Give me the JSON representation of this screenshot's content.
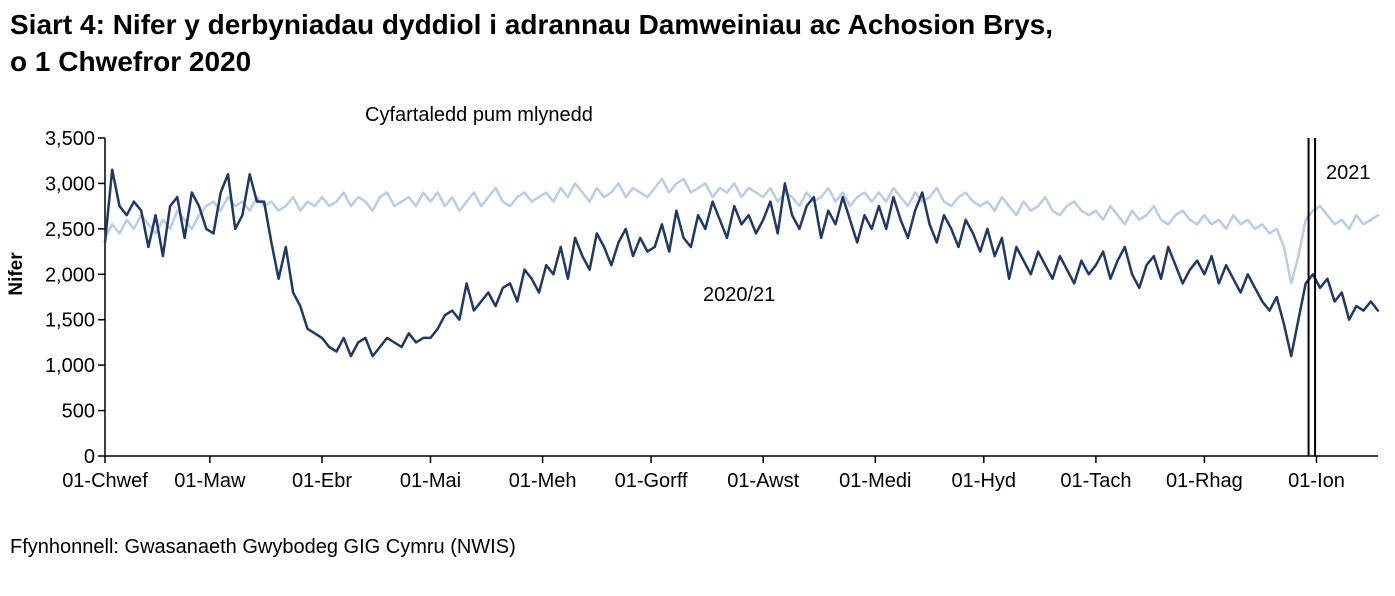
{
  "page": {
    "title_line1": "Siart 4: Nifer y derbyniadau dyddiol i adrannau Damweiniau ac Achosion Brys,",
    "title_line2": "o 1 Chwefror 2020",
    "source": "Ffynhonnell: Gwasanaeth Gwybodeg GIG Cymru (NWIS)"
  },
  "chart_data": {
    "type": "line",
    "title": "Siart 4: Nifer y derbyniadau dyddiol i adrannau Damweiniau ac Achosion Brys, o 1 Chwefror 2020",
    "ylabel": "Nifer",
    "xlabel": "",
    "ylim": [
      0,
      3500
    ],
    "grid": false,
    "legend_position": "inline-annotations",
    "yticks": {
      "values": [
        0,
        500,
        1000,
        1500,
        2000,
        2500,
        3000,
        3500
      ],
      "labels": [
        "0",
        "500",
        "1,000",
        "1,500",
        "2,000",
        "2,500",
        "3,000",
        "3,500"
      ]
    },
    "xticks": [
      {
        "day": 0,
        "label": "01-Chwef"
      },
      {
        "day": 29,
        "label": "01-Maw"
      },
      {
        "day": 60,
        "label": "01-Ebr"
      },
      {
        "day": 90,
        "label": "01-Mai"
      },
      {
        "day": 121,
        "label": "01-Meh"
      },
      {
        "day": 151,
        "label": "01-Gorff"
      },
      {
        "day": 182,
        "label": "01-Awst"
      },
      {
        "day": 213,
        "label": "01-Medi"
      },
      {
        "day": 243,
        "label": "01-Hyd"
      },
      {
        "day": 274,
        "label": "01-Tach"
      },
      {
        "day": 304,
        "label": "01-Rhag"
      },
      {
        "day": 335,
        "label": "01-Ion"
      }
    ],
    "x_max_day": 352,
    "vline_days": [
      332.8,
      334.6
    ],
    "labels": {
      "five_year": "Cyfartaledd pum mlynedd",
      "current": "2020/21",
      "year_marker": "2021"
    },
    "series": [
      {
        "name": "Cyfartaledd pum mlynedd",
        "color": "#B9CDE5",
        "stroke_width": 2.5,
        "x_start_day": 0,
        "x_interval_days": 2,
        "values": [
          2400,
          2550,
          2450,
          2600,
          2500,
          2650,
          2550,
          2450,
          2600,
          2500,
          2700,
          2600,
          2500,
          2650,
          2750,
          2800,
          2700,
          2850,
          2750,
          2800,
          2700,
          2850,
          2750,
          2800,
          2700,
          2750,
          2850,
          2700,
          2800,
          2750,
          2850,
          2750,
          2800,
          2900,
          2750,
          2850,
          2800,
          2700,
          2850,
          2900,
          2750,
          2800,
          2850,
          2750,
          2900,
          2800,
          2900,
          2750,
          2850,
          2700,
          2800,
          2900,
          2750,
          2850,
          2950,
          2800,
          2750,
          2850,
          2900,
          2800,
          2850,
          2900,
          2800,
          2950,
          2850,
          3000,
          2900,
          2800,
          2950,
          2850,
          2900,
          3000,
          2850,
          2950,
          2900,
          2850,
          2950,
          3050,
          2900,
          3000,
          3050,
          2900,
          2950,
          3000,
          2850,
          2950,
          2900,
          3000,
          2850,
          2950,
          2900,
          2850,
          2950,
          2800,
          2900,
          2850,
          2750,
          2900,
          2800,
          2850,
          2950,
          2800,
          2900,
          2750,
          2850,
          2900,
          2800,
          2900,
          2800,
          2950,
          2850,
          2750,
          2900,
          2800,
          2850,
          2950,
          2800,
          2750,
          2850,
          2900,
          2800,
          2750,
          2800,
          2700,
          2850,
          2750,
          2650,
          2800,
          2700,
          2750,
          2850,
          2700,
          2650,
          2750,
          2800,
          2700,
          2650,
          2700,
          2600,
          2750,
          2650,
          2550,
          2700,
          2600,
          2650,
          2750,
          2600,
          2550,
          2650,
          2700,
          2600,
          2550,
          2650,
          2550,
          2600,
          2500,
          2650,
          2550,
          2600,
          2500,
          2550,
          2450,
          2500,
          2300,
          1900,
          2200,
          2600,
          2700,
          2750,
          2650,
          2550,
          2600,
          2500,
          2650,
          2550,
          2600,
          2650
        ]
      },
      {
        "name": "2020/21",
        "color": "#1F3864",
        "stroke_width": 2.5,
        "x_start_day": 0,
        "x_interval_days": 2,
        "values": [
          2350,
          3150,
          2750,
          2650,
          2800,
          2700,
          2300,
          2650,
          2200,
          2750,
          2850,
          2400,
          2900,
          2750,
          2500,
          2450,
          2900,
          3100,
          2500,
          2650,
          3100,
          2800,
          2800,
          2350,
          1950,
          2300,
          1800,
          1650,
          1400,
          1350,
          1300,
          1200,
          1150,
          1300,
          1100,
          1250,
          1300,
          1100,
          1200,
          1300,
          1250,
          1200,
          1350,
          1250,
          1300,
          1300,
          1400,
          1550,
          1600,
          1500,
          1900,
          1600,
          1700,
          1800,
          1650,
          1850,
          1900,
          1700,
          2050,
          1950,
          1800,
          2100,
          2000,
          2300,
          1950,
          2400,
          2200,
          2050,
          2450,
          2300,
          2100,
          2350,
          2500,
          2200,
          2400,
          2250,
          2300,
          2550,
          2250,
          2700,
          2400,
          2300,
          2650,
          2500,
          2800,
          2600,
          2400,
          2750,
          2550,
          2650,
          2450,
          2600,
          2800,
          2450,
          3000,
          2650,
          2500,
          2750,
          2850,
          2400,
          2700,
          2550,
          2850,
          2600,
          2350,
          2650,
          2500,
          2750,
          2500,
          2850,
          2600,
          2400,
          2700,
          2900,
          2550,
          2350,
          2650,
          2500,
          2300,
          2600,
          2450,
          2250,
          2500,
          2200,
          2400,
          1950,
          2300,
          2150,
          2000,
          2250,
          2100,
          1950,
          2200,
          2050,
          1900,
          2150,
          2000,
          2100,
          2250,
          1950,
          2150,
          2300,
          2000,
          1850,
          2100,
          2200,
          1950,
          2300,
          2100,
          1900,
          2050,
          2150,
          2000,
          2200,
          1900,
          2100,
          1950,
          1800,
          2000,
          1850,
          1700,
          1600,
          1750,
          1450,
          1100,
          1500,
          1900,
          2000,
          1850,
          1950,
          1700,
          1800,
          1500,
          1650,
          1600,
          1700,
          1600
        ]
      }
    ]
  }
}
